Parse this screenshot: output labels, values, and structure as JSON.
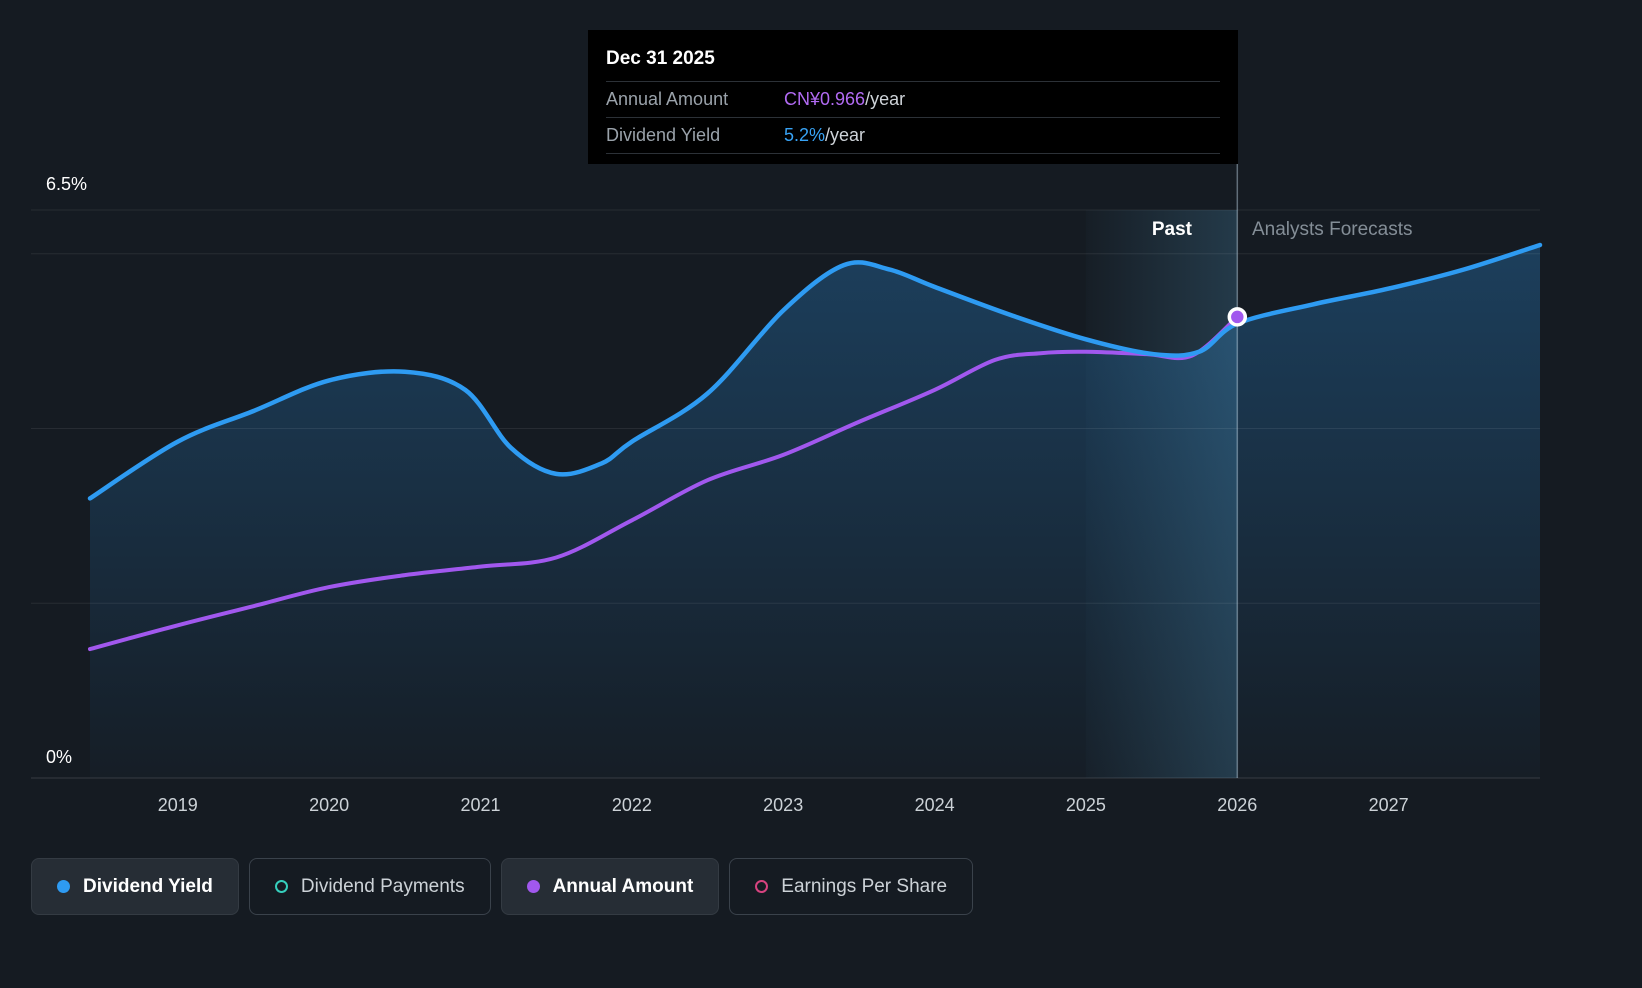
{
  "tooltip": {
    "date": "Dec 31 2025",
    "rows": [
      {
        "label": "Annual Amount",
        "value": "CN¥0.966",
        "suffix": "/year"
      },
      {
        "label": "Dividend Yield",
        "value": "5.2%",
        "suffix": "/year"
      }
    ]
  },
  "axis": {
    "y_top": "6.5%",
    "y_bottom": "0%",
    "x_ticks": [
      "2019",
      "2020",
      "2021",
      "2022",
      "2023",
      "2024",
      "2025",
      "2026",
      "2027"
    ]
  },
  "annotations": {
    "past": "Past",
    "forecast": "Analysts Forecasts"
  },
  "legend": [
    {
      "label": "Dividend Yield",
      "color": "#2e9bf2",
      "style": "filled",
      "active": true
    },
    {
      "label": "Dividend Payments",
      "color": "#36cfbd",
      "style": "ring",
      "active": false
    },
    {
      "label": "Annual Amount",
      "color": "#a158ee",
      "style": "filled",
      "active": true
    },
    {
      "label": "Earnings Per Share",
      "color": "#d6437f",
      "style": "ring",
      "active": false
    }
  ],
  "colors": {
    "background": "#151b22",
    "dividend_yield_line": "#2e9bf2",
    "annual_amount_line": "#a158ee",
    "tooltip_value_purple": "#b16af2",
    "tooltip_value_blue": "#38a3f5"
  },
  "chart_data": {
    "type": "area",
    "title": "Dividend yield and annual dividend amount, past and analyst forecast",
    "x_range": [
      2018.42,
      2028.0
    ],
    "x_ticks": [
      2019,
      2020,
      2021,
      2022,
      2023,
      2024,
      2025,
      2026,
      2027
    ],
    "gridlines_yield_pct": [
      0,
      2,
      4,
      6,
      6.5
    ],
    "divider_year": 2026,
    "divider_label_left": "Past",
    "divider_label_right": "Analysts Forecasts",
    "highlight_band_years": [
      2025,
      2026
    ],
    "legend_position": "bottom",
    "series": [
      {
        "name": "Dividend Yield",
        "unit": "%",
        "axis_max": 6.5,
        "color": "#2e9bf2",
        "area_fill": true,
        "points": [
          [
            2018.42,
            3.2
          ],
          [
            2019,
            3.85
          ],
          [
            2019.5,
            4.2
          ],
          [
            2020,
            4.55
          ],
          [
            2020.5,
            4.65
          ],
          [
            2020.9,
            4.44
          ],
          [
            2021.2,
            3.78
          ],
          [
            2021.5,
            3.48
          ],
          [
            2021.8,
            3.6
          ],
          [
            2022,
            3.85
          ],
          [
            2022.5,
            4.4
          ],
          [
            2023,
            5.35
          ],
          [
            2023.4,
            5.87
          ],
          [
            2023.7,
            5.82
          ],
          [
            2024,
            5.62
          ],
          [
            2024.5,
            5.3
          ],
          [
            2025,
            5.02
          ],
          [
            2025.45,
            4.85
          ],
          [
            2025.75,
            4.88
          ],
          [
            2026,
            5.2
          ],
          [
            2026.5,
            5.42
          ],
          [
            2027,
            5.6
          ],
          [
            2027.5,
            5.82
          ],
          [
            2028,
            6.1
          ]
        ]
      },
      {
        "name": "Annual Amount",
        "unit": "CN¥",
        "axis_max": 1.19,
        "color": "#a158ee",
        "area_fill": false,
        "marker_point": [
          2026,
          0.966
        ],
        "marker_value_label": "CN¥0.966/year",
        "points": [
          [
            2018.42,
            0.27
          ],
          [
            2019,
            0.32
          ],
          [
            2019.5,
            0.36
          ],
          [
            2020,
            0.4
          ],
          [
            2020.5,
            0.425
          ],
          [
            2021,
            0.443
          ],
          [
            2021.5,
            0.462
          ],
          [
            2022,
            0.54
          ],
          [
            2022.5,
            0.624
          ],
          [
            2023,
            0.677
          ],
          [
            2023.5,
            0.746
          ],
          [
            2024,
            0.813
          ],
          [
            2024.4,
            0.876
          ],
          [
            2024.7,
            0.89
          ],
          [
            2025,
            0.893
          ],
          [
            2025.4,
            0.888
          ],
          [
            2025.7,
            0.885
          ],
          [
            2026,
            0.966
          ]
        ]
      }
    ]
  }
}
